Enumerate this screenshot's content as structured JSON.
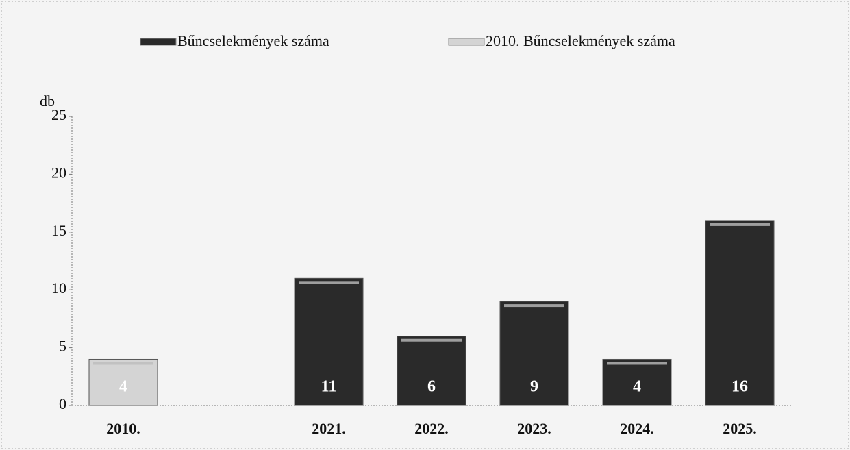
{
  "chart_data": {
    "type": "bar",
    "y_axis_label": "db",
    "categories": [
      "2010.",
      null,
      "2021.",
      "2022.",
      "2023.",
      "2024.",
      "2025."
    ],
    "series": [
      {
        "name": "Bűncselekmények száma",
        "color": "#2a2a2a",
        "values": [
          null,
          null,
          11,
          6,
          9,
          4,
          16
        ]
      },
      {
        "name": "2010. Bűncselekmények száma",
        "color": "#d4d4d4",
        "values": [
          4,
          null,
          null,
          null,
          null,
          null,
          null
        ]
      }
    ],
    "ylim": [
      0,
      25
    ],
    "yticks": [
      0,
      5,
      10,
      15,
      20,
      25
    ],
    "grid": false,
    "legend": "top"
  }
}
